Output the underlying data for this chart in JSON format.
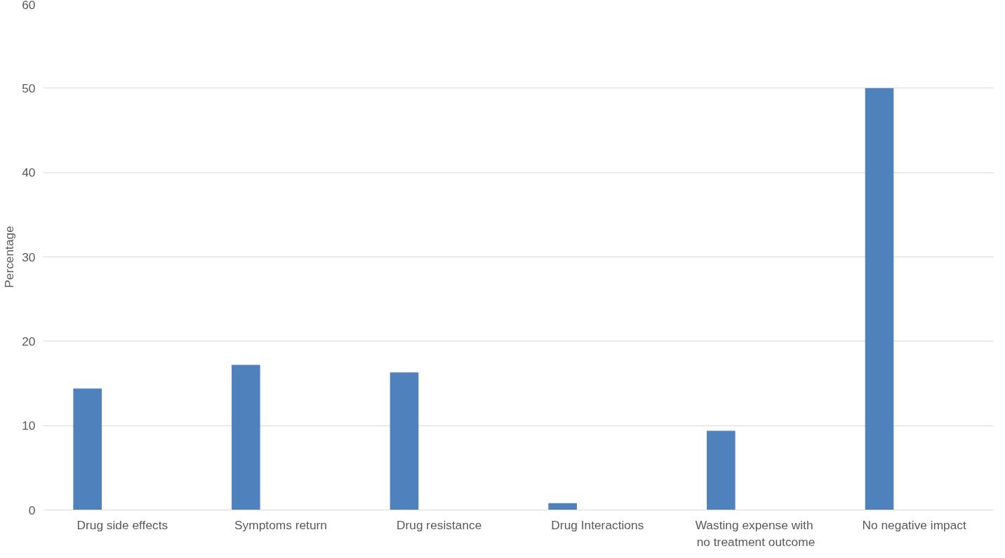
{
  "chart_data": {
    "type": "bar",
    "ylabel": "Percentage",
    "categories": [
      "Drug side effects",
      "Symptoms return",
      "Drug resistance",
      "Drug Interactions",
      "Wasting  expense with no treatment outcome",
      "No negative impact"
    ],
    "values": [
      14.4,
      17.2,
      16.3,
      0.8,
      9.4,
      50
    ],
    "color": "#4f81bd",
    "ylim": [
      0,
      60
    ],
    "yticks": [
      0,
      10,
      20,
      30,
      40,
      50,
      60
    ],
    "grid": "y"
  }
}
